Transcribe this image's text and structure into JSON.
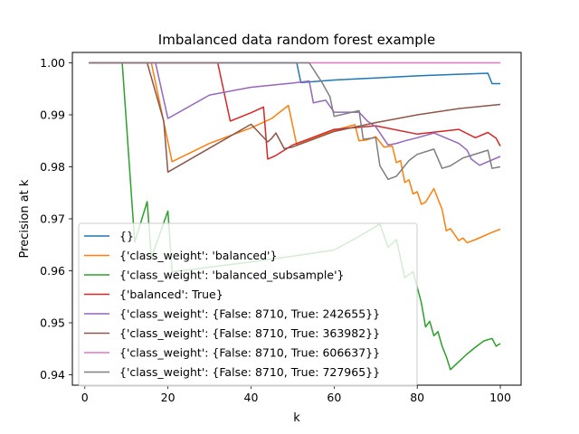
{
  "chart_data": {
    "type": "line",
    "title": "Imbalanced data random forest example",
    "xlabel": "k",
    "ylabel": "Precision at k",
    "xlim": [
      -3,
      105
    ],
    "ylim": [
      0.938,
      1.002
    ],
    "xticks": [
      0,
      20,
      40,
      60,
      80,
      100
    ],
    "xtick_labels": [
      "0",
      "20",
      "40",
      "60",
      "80",
      "100"
    ],
    "yticks": [
      0.94,
      0.95,
      0.96,
      0.97,
      0.98,
      0.99,
      1.0
    ],
    "ytick_labels": [
      "0.94",
      "0.95",
      "0.96",
      "0.97",
      "0.98",
      "0.99",
      "1.00"
    ],
    "legend_position": "lower-left",
    "grid": false,
    "series": [
      {
        "name": "{}",
        "color": "#1f77b4",
        "x": [
          1,
          51,
          52,
          60,
          70,
          80,
          90,
          97,
          98,
          100
        ],
        "y": [
          1.0,
          1.0,
          0.9962,
          0.9967,
          0.9971,
          0.9975,
          0.9978,
          0.998,
          0.996,
          0.996
        ]
      },
      {
        "name": "{'class_weight': 'balanced'}",
        "color": "#ff7f0e",
        "x": [
          1,
          16,
          21,
          30,
          40,
          45,
          49,
          51,
          56,
          60,
          65,
          66,
          68,
          70,
          72,
          74,
          75,
          76,
          77,
          78,
          79,
          80,
          81,
          82,
          84,
          86,
          87,
          88,
          90,
          91,
          92,
          94,
          96,
          98,
          100
        ],
        "y": [
          1.0,
          1.0,
          0.981,
          0.9845,
          0.9875,
          0.9893,
          0.9918,
          0.9842,
          0.9858,
          0.987,
          0.9881,
          0.985,
          0.9852,
          0.9858,
          0.9838,
          0.984,
          0.9808,
          0.9812,
          0.977,
          0.9775,
          0.9748,
          0.9752,
          0.9728,
          0.9732,
          0.9758,
          0.9718,
          0.9677,
          0.9681,
          0.9658,
          0.9663,
          0.9654,
          0.966,
          0.9667,
          0.9674,
          0.968
        ]
      },
      {
        "name": "{'class_weight': 'balanced_subsample'}",
        "color": "#2ca02c",
        "x": [
          1,
          9,
          12,
          15,
          16,
          20,
          21,
          30,
          40,
          50,
          60,
          66,
          71,
          73,
          75,
          77,
          79,
          81,
          82,
          83,
          84,
          85,
          86,
          87,
          88,
          90,
          92,
          94,
          96,
          98,
          99,
          100
        ],
        "y": [
          1.0,
          1.0,
          0.9655,
          0.9733,
          0.9625,
          0.9715,
          0.9598,
          0.9607,
          0.9617,
          0.9628,
          0.964,
          0.9666,
          0.969,
          0.9645,
          0.966,
          0.9587,
          0.9598,
          0.9538,
          0.9492,
          0.9503,
          0.9475,
          0.9483,
          0.9455,
          0.9435,
          0.941,
          0.9425,
          0.944,
          0.9453,
          0.9465,
          0.947,
          0.9455,
          0.946
        ]
      },
      {
        "name": "{'balanced': True}",
        "color": "#d62728",
        "x": [
          1,
          32,
          35,
          40,
          43,
          44,
          45,
          46,
          50,
          60,
          70,
          80,
          90,
          94,
          97,
          99,
          100
        ],
        "y": [
          1.0,
          1.0,
          0.9888,
          0.9904,
          0.9915,
          0.9815,
          0.9818,
          0.9822,
          0.9842,
          0.9872,
          0.9879,
          0.9863,
          0.9872,
          0.9856,
          0.9866,
          0.9855,
          0.984
        ]
      },
      {
        "name": "{'class_weight': {False: 8710, True: 242655}}",
        "color": "#9467bd",
        "x": [
          1,
          17,
          20,
          30,
          40,
          50,
          54,
          55,
          56,
          58,
          60,
          66,
          68,
          70,
          73,
          75,
          77,
          80,
          84,
          90,
          92,
          93,
          95,
          97,
          100
        ],
        "y": [
          1.0,
          1.0,
          0.9893,
          0.9938,
          0.9953,
          0.9961,
          0.9965,
          0.9923,
          0.9925,
          0.9928,
          0.9905,
          0.9905,
          0.9888,
          0.9877,
          0.9842,
          0.9845,
          0.985,
          0.9856,
          0.9865,
          0.9845,
          0.9832,
          0.9815,
          0.9803,
          0.981,
          0.982
        ]
      },
      {
        "name": "{'class_weight': {False: 8710, True: 363982}}",
        "color": "#8c564b",
        "x": [
          1,
          15,
          19,
          20,
          30,
          40,
          44,
          45,
          46,
          48,
          50,
          60,
          70,
          80,
          90,
          100
        ],
        "y": [
          1.0,
          1.0,
          0.9888,
          0.979,
          0.9836,
          0.9882,
          0.9848,
          0.9855,
          0.9865,
          0.9835,
          0.9838,
          0.9868,
          0.9885,
          0.99,
          0.9912,
          0.992
        ]
      },
      {
        "name": "{'class_weight': {False: 8710, True: 606637}}",
        "color": "#e377c2",
        "x": [
          1,
          100
        ],
        "y": [
          1.0,
          1.0
        ]
      },
      {
        "name": "{'class_weight': {False: 8710, True: 727965}}",
        "color": "#7f7f7f",
        "x": [
          1,
          54,
          57,
          59,
          60,
          66,
          67,
          70,
          71,
          73,
          75,
          78,
          80,
          84,
          86,
          88,
          91,
          93,
          97,
          98,
          100
        ],
        "y": [
          1.0,
          1.0,
          0.9963,
          0.9935,
          0.9897,
          0.9908,
          0.9853,
          0.9856,
          0.9802,
          0.9776,
          0.9782,
          0.9812,
          0.9824,
          0.9834,
          0.9797,
          0.9802,
          0.9817,
          0.9822,
          0.9832,
          0.9797,
          0.98
        ]
      }
    ]
  }
}
